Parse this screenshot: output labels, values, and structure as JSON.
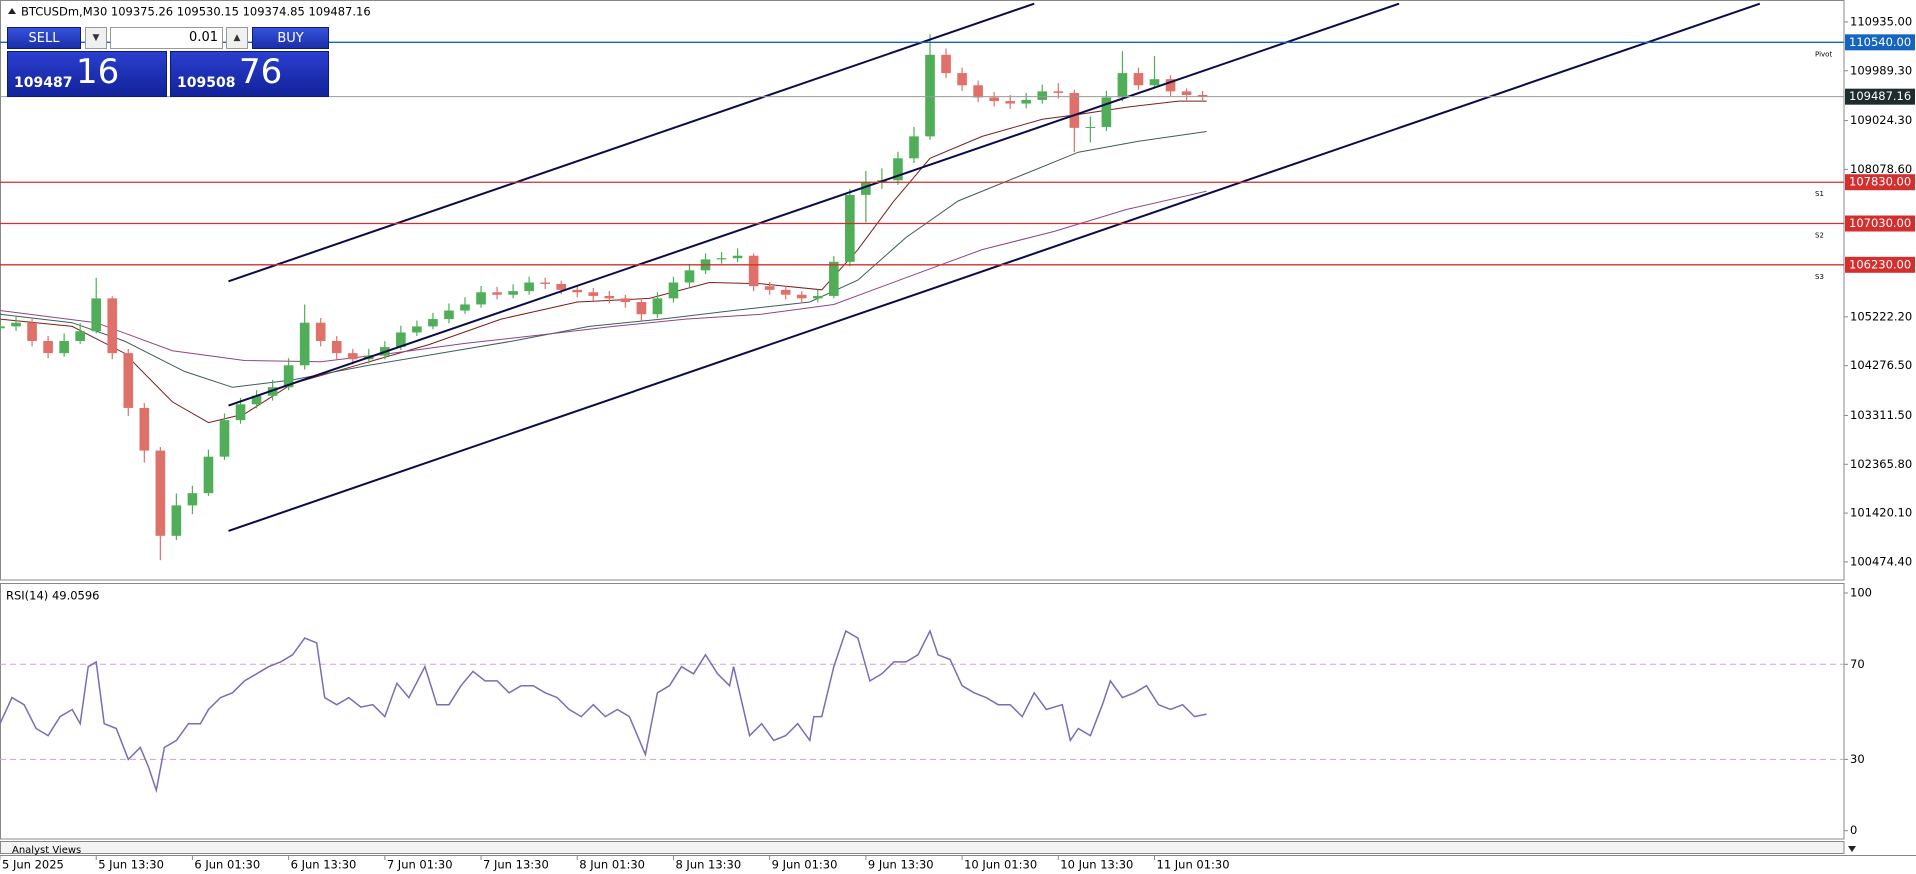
{
  "chart_data": [
    {
      "type": "candlestick",
      "title": "BTCUSDm,M30  109375.26 109530.15 109374.85 109487.16",
      "up_color": "#4fae57",
      "down_color": "#e0706a",
      "xlim": [
        0,
        460
      ],
      "ylim": [
        100124,
        111360
      ],
      "yticks": [
        {
          "value": 110935,
          "label": "110935.00"
        },
        {
          "value": 109989.3,
          "label": "109989.30"
        },
        {
          "value": 109024.3,
          "label": "109024.30"
        },
        {
          "value": 108078.6,
          "label": "108078.60"
        },
        {
          "value": 105222.2,
          "label": "105222.20"
        },
        {
          "value": 104276.5,
          "label": "104276.50"
        },
        {
          "value": 103311.5,
          "label": "103311.50"
        },
        {
          "value": 102365.8,
          "label": "102365.80"
        },
        {
          "value": 101420.1,
          "label": "101420.10"
        },
        {
          "value": 100474.4,
          "label": "100474.40"
        }
      ],
      "xticks": [
        {
          "value": 0,
          "label": "5 Jun 2025"
        },
        {
          "value": 24,
          "label": "5 Jun 13:30"
        },
        {
          "value": 48,
          "label": "6 Jun 01:30"
        },
        {
          "value": 72,
          "label": "6 Jun 13:30"
        },
        {
          "value": 96,
          "label": "7 Jun 01:30"
        },
        {
          "value": 120,
          "label": "7 Jun 13:30"
        },
        {
          "value": 144,
          "label": "8 Jun 01:30"
        },
        {
          "value": 168,
          "label": "8 Jun 13:30"
        },
        {
          "value": 192,
          "label": "9 Jun 01:30"
        },
        {
          "value": 216,
          "label": "9 Jun 13:30"
        },
        {
          "value": 240,
          "label": "10 Jun 01:30"
        },
        {
          "value": 264,
          "label": "10 Jun 13:30"
        },
        {
          "value": 288,
          "label": "11 Jun 01:30"
        }
      ],
      "x": [
        0,
        4,
        8,
        12,
        16,
        20,
        24,
        28,
        32,
        36,
        40,
        44,
        48,
        52,
        56,
        60,
        64,
        68,
        72,
        76,
        80,
        84,
        88,
        92,
        96,
        100,
        104,
        108,
        112,
        116,
        120,
        124,
        128,
        132,
        136,
        140,
        144,
        148,
        152,
        156,
        160,
        164,
        168,
        172,
        176,
        180,
        184,
        188,
        192,
        196,
        200,
        204,
        208,
        212,
        216,
        220,
        224,
        228,
        232,
        236,
        240,
        244,
        248,
        252,
        256,
        260,
        264,
        268,
        272,
        276,
        280,
        284,
        288,
        292,
        296,
        300
      ],
      "open": [
        105000,
        105037,
        105108,
        104754,
        104519,
        104754,
        104943,
        105580,
        104519,
        103457,
        102631,
        100980,
        101570,
        101806,
        102513,
        103221,
        103528,
        103693,
        103858,
        104283,
        105108,
        104754,
        104519,
        104401,
        104471,
        104636,
        104920,
        105037,
        105179,
        105344,
        105462,
        105698,
        105650,
        105720,
        105887,
        105860,
        105745,
        105698,
        105627,
        105580,
        105509,
        105273,
        105580,
        105887,
        106123,
        106335,
        106358,
        106406,
        105816,
        105745,
        105651,
        105580,
        105627,
        106288,
        107585,
        107821,
        107868,
        108293,
        108718,
        110298,
        109944,
        109708,
        109472,
        109402,
        109354,
        109425,
        109590,
        109560,
        108883,
        108900,
        109472,
        109944,
        109708,
        109826,
        109590,
        109520
      ],
      "high": [
        105180,
        105250,
        105200,
        104850,
        104900,
        105100,
        105980,
        105620,
        104600,
        103550,
        102700,
        101800,
        101950,
        102650,
        103350,
        103650,
        103800,
        104000,
        104420,
        105462,
        105200,
        104850,
        104600,
        104600,
        104750,
        105050,
        105150,
        105300,
        105480,
        105600,
        105820,
        105800,
        105850,
        106000,
        105980,
        105920,
        105820,
        105780,
        105720,
        105650,
        105580,
        105700,
        106000,
        106250,
        106450,
        106480,
        106550,
        106450,
        105900,
        105820,
        105720,
        105750,
        106400,
        107700,
        108050,
        108100,
        108420,
        108900,
        110699,
        110420,
        110050,
        109800,
        109580,
        109520,
        109560,
        109720,
        109750,
        109620,
        109100,
        109600,
        110369,
        110050,
        110274,
        109900,
        109650,
        109600
      ],
      "low": [
        104900,
        104950,
        104650,
        104420,
        104450,
        104700,
        104900,
        104400,
        103300,
        102400,
        100508,
        100900,
        101400,
        101750,
        102450,
        103150,
        103450,
        103600,
        103800,
        104200,
        104650,
        104400,
        104300,
        104320,
        104400,
        104580,
        104850,
        104980,
        105100,
        105280,
        105400,
        105560,
        105580,
        105650,
        105760,
        105660,
        105600,
        105540,
        105480,
        105400,
        105150,
        105200,
        105500,
        105800,
        106050,
        106250,
        106280,
        105720,
        105650,
        105560,
        105480,
        105500,
        105580,
        106200,
        107050,
        107700,
        107780,
        108200,
        108650,
        109850,
        109600,
        109380,
        109300,
        109250,
        109260,
        109350,
        109450,
        108411,
        108600,
        108820,
        109400,
        109620,
        109650,
        109500,
        109420,
        109420
      ],
      "close": [
        105037,
        105108,
        104754,
        104519,
        104754,
        104943,
        105580,
        104519,
        103457,
        102631,
        100980,
        101570,
        101806,
        102513,
        103221,
        103528,
        103693,
        103858,
        104283,
        105108,
        104754,
        104519,
        104401,
        104471,
        104636,
        104920,
        105037,
        105179,
        105344,
        105462,
        105698,
        105650,
        105720,
        105887,
        105860,
        105745,
        105698,
        105627,
        105580,
        105509,
        105273,
        105580,
        105887,
        106123,
        106335,
        106358,
        106406,
        105816,
        105745,
        105651,
        105580,
        105627,
        106288,
        107585,
        107821,
        107868,
        108293,
        108718,
        110298,
        109944,
        109708,
        109472,
        109402,
        109354,
        109425,
        109590,
        109560,
        108883,
        108900,
        109472,
        109944,
        109708,
        109826,
        109590,
        109520,
        109487
      ],
      "moving_averages": [
        {
          "color": "#7a1f1f",
          "x": [
            0,
            18,
            31,
            43,
            52,
            61,
            73,
            89,
            107,
            125,
            144,
            162,
            177,
            190,
            205,
            214,
            223,
            232,
            245,
            260,
            269,
            281,
            294,
            301
          ],
          "values": [
            105179,
            105037,
            104519,
            103575,
            103174,
            103339,
            103929,
            104283,
            104684,
            105179,
            105509,
            105580,
            105887,
            105863,
            105745,
            106524,
            107467,
            108293,
            108718,
            109048,
            109142,
            109284,
            109402,
            109402
          ]
        },
        {
          "color": "#3d5c5c",
          "x": [
            0,
            18,
            31,
            46,
            58,
            73,
            92,
            110,
            128,
            147,
            165,
            183,
            202,
            214,
            226,
            239,
            254,
            269,
            284,
            301
          ],
          "values": [
            105273,
            105108,
            104754,
            104165,
            103858,
            104000,
            104283,
            104519,
            104754,
            105037,
            105179,
            105344,
            105509,
            105934,
            106760,
            107467,
            107939,
            108411,
            108623,
            108812
          ]
        },
        {
          "color": "#8e4585",
          "x": [
            0,
            24,
            43,
            61,
            80,
            98,
            116,
            135,
            153,
            171,
            190,
            208,
            226,
            245,
            263,
            281,
            301
          ],
          "values": [
            105344,
            105108,
            104566,
            104377,
            104353,
            104519,
            104707,
            104872,
            105037,
            105179,
            105273,
            105462,
            105981,
            106524,
            106878,
            107302,
            107656
          ]
        }
      ],
      "trendlines": [
        {
          "color": "#0b0b4a",
          "x": [
            57,
            258
          ],
          "values": [
            105910,
            111289
          ]
        },
        {
          "color": "#0b0b4a",
          "x": [
            57,
            349
          ],
          "values": [
            103504,
            111289
          ]
        },
        {
          "color": "#0b0b4a",
          "x": [
            57,
            439
          ],
          "values": [
            101074,
            111289
          ]
        }
      ],
      "levels": [
        {
          "name": "Pivot",
          "value": 110540,
          "label": "110540.00",
          "color": "#1565c0"
        },
        {
          "name": "S1",
          "value": 107830,
          "label": "107830.00",
          "color": "#d32f2f"
        },
        {
          "name": "S2",
          "value": 107030,
          "label": "107030.00",
          "color": "#d32f2f"
        },
        {
          "name": "S3",
          "value": 106230,
          "label": "106230.00",
          "color": "#d32f2f"
        }
      ],
      "current_price": 109487.16
    },
    {
      "type": "line",
      "title": "RSI(14) 49.0596",
      "color": "#7e6bb8",
      "xlim": [
        0,
        460
      ],
      "ylim": [
        -3.5,
        104.2
      ],
      "yticks": [
        100,
        70,
        30,
        0
      ],
      "levels": [
        70,
        30
      ],
      "x": [
        0,
        3,
        6,
        9,
        12,
        15,
        18,
        20,
        22,
        24,
        26,
        29,
        32,
        35,
        37,
        39,
        41,
        44,
        47,
        50,
        52,
        55,
        58,
        61,
        64,
        67,
        70,
        73,
        76,
        79,
        81,
        84,
        87,
        90,
        93,
        96,
        99,
        102,
        106,
        109,
        112,
        115,
        118,
        121,
        124,
        127,
        130,
        133,
        136,
        139,
        142,
        145,
        148,
        151,
        154,
        157,
        161,
        164,
        167,
        170,
        173,
        176,
        179,
        182,
        183,
        187,
        190,
        193,
        196,
        199,
        202,
        203,
        205,
        208,
        211,
        214,
        217,
        220,
        223,
        226,
        229,
        232,
        234,
        237,
        240,
        243,
        246,
        249,
        252,
        255,
        258,
        261,
        265,
        267,
        269,
        272,
        275,
        277,
        280,
        283,
        286,
        289,
        292,
        295,
        298,
        301
      ],
      "values": [
        45,
        56,
        53,
        43,
        40,
        48,
        51,
        45,
        69,
        71,
        45,
        43,
        30,
        35,
        27,
        17,
        35,
        38,
        45,
        45,
        51,
        56,
        58,
        63,
        66,
        69,
        71,
        74,
        81,
        79,
        56,
        53,
        56,
        52,
        53,
        48,
        62,
        56,
        69,
        53,
        53,
        61,
        67,
        63,
        63,
        58,
        61,
        61,
        58,
        56,
        51,
        48,
        53,
        48,
        51,
        48,
        32,
        58,
        61,
        69,
        66,
        74,
        66,
        61,
        69,
        40,
        45,
        38,
        40,
        45,
        38,
        48,
        48,
        69,
        84,
        81,
        63,
        66,
        71,
        71,
        74,
        84,
        74,
        72,
        61,
        58,
        56,
        53,
        53,
        48,
        58,
        51,
        53,
        38,
        43,
        40,
        53,
        63,
        56,
        58,
        61,
        53,
        51,
        53,
        48,
        49.0596
      ]
    }
  ],
  "trade_panel": {
    "sell": "SELL",
    "buy": "BUY",
    "lot": "0.01",
    "bid_main": "109487",
    "bid_big": "16",
    "ask_main": "109508",
    "ask_big": "76"
  },
  "footer_tab": "Analyst Views"
}
